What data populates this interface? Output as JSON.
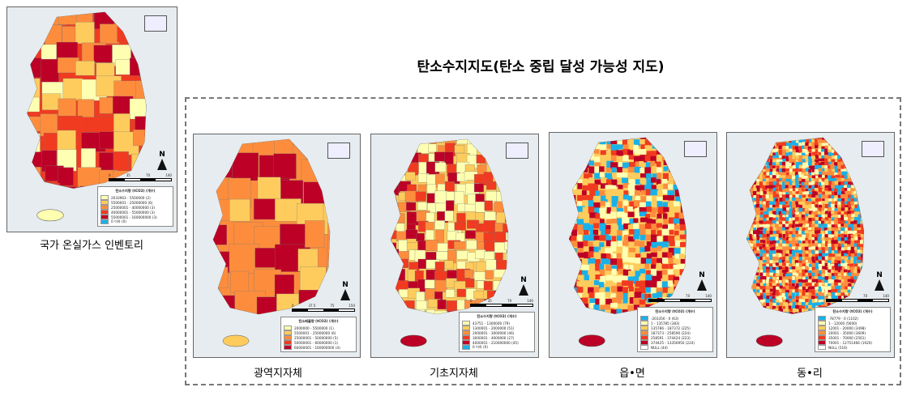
{
  "title": "탄소수지지도(탄소 중립 달성 가능성 지도)",
  "colors": {
    "c1": "#ffffb2",
    "c2": "#fecc5c",
    "c3": "#fd8d3c",
    "c4": "#f03b20",
    "c5": "#bd0026",
    "neg": "#1ab0e8",
    "null": "#ffffff",
    "sea": "#e6ecef"
  },
  "maps": [
    {
      "id": "national",
      "caption": "국가 온실가스 인벤토리",
      "north": "N",
      "scale": [
        "0",
        "35",
        "70",
        "140"
      ],
      "legend_title": "탄소수지량 (tCO2) (개수)",
      "legend": [
        {
          "label": "2033963 - 5500000 (2)",
          "color": "#ffffb2"
        },
        {
          "label": "5500001 - 25000000 (6)",
          "color": "#fecc5c"
        },
        {
          "label": "25000001 - 40000000 (3)",
          "color": "#fd8d3c"
        },
        {
          "label": "40000001 - 55000000 (3)",
          "color": "#f03b20"
        },
        {
          "label": "55000001 - 160000000 (3)",
          "color": "#bd0026"
        },
        {
          "label": "0 이하 (0)",
          "color": "#1ab0e8"
        }
      ]
    },
    {
      "id": "province",
      "caption": "광역지자체",
      "north": "N",
      "scale": [
        "0",
        "37.5",
        "75",
        "150"
      ],
      "legend_title": "탄소배출량 (tCO2) (개수)",
      "legend": [
        {
          "label": "2000000 - 5500000 (1)",
          "color": "#ffffb2"
        },
        {
          "label": "5500001 - 25000000 (6)",
          "color": "#fecc5c"
        },
        {
          "label": "25000001 - 50000000 (5)",
          "color": "#fd8d3c"
        },
        {
          "label": "50000001 - 60000000 (1)",
          "color": "#f03b20"
        },
        {
          "label": "60000001 - 160000000 (4)",
          "color": "#bd0026"
        }
      ]
    },
    {
      "id": "municipal",
      "caption": "기초지자체",
      "north": "N",
      "scale": [
        "0",
        "35",
        "70",
        "140"
      ],
      "legend_title": "탄소수지량 (tCO2) (개수)",
      "legend": [
        {
          "label": "43751 - 1300000 (79)",
          "color": "#ffffb2"
        },
        {
          "label": "1300001 - 2000000 (51)",
          "color": "#fecc5c"
        },
        {
          "label": "2000001 - 3000000 (46)",
          "color": "#fd8d3c"
        },
        {
          "label": "3000001 - 4000000 (27)",
          "color": "#f03b20"
        },
        {
          "label": "4000001 - 210000000 (45)",
          "color": "#bd0026"
        },
        {
          "label": "0 이하 (0)",
          "color": "#1ab0e8"
        }
      ]
    },
    {
      "id": "eup-myeon",
      "caption": "읍•면",
      "north": "N",
      "scale": [
        "0",
        "35",
        "70",
        "140"
      ],
      "legend_title": "탄소수지량 (tCO2) (개수)",
      "legend": [
        {
          "label": "-203356 - 0 (63)",
          "color": "#1ab0e8"
        },
        {
          "label": "1 - 135785 (383)",
          "color": "#ffffb2"
        },
        {
          "label": "135786 - 187372 (225)",
          "color": "#fecc5c"
        },
        {
          "label": "187373 - 258590 (224)",
          "color": "#fd8d3c"
        },
        {
          "label": "258591 - 374424 (223)",
          "color": "#f03b20"
        },
        {
          "label": "374425 - 13356950 (224)",
          "color": "#bd0026"
        },
        {
          "label": "NULL (44)",
          "color": "#ffffff"
        }
      ]
    },
    {
      "id": "dong-ri",
      "caption": "동•리",
      "north": "N",
      "scale": [
        "0",
        "35",
        "70",
        "140"
      ],
      "legend_title": "탄소수지량 (tCO2) (개수)",
      "legend": [
        {
          "label": "-78779 - 0 (1102)",
          "color": "#1ab0e8"
        },
        {
          "label": "1 - 12000 (5600)",
          "color": "#ffffb2"
        },
        {
          "label": "12001 - 20000 (3498)",
          "color": "#fecc5c"
        },
        {
          "label": "20001 - 35000 (3609)",
          "color": "#fd8d3c"
        },
        {
          "label": "35001 - 70000 (2561)",
          "color": "#f03b20"
        },
        {
          "label": "70001 - 12751466 (1920)",
          "color": "#bd0026"
        },
        {
          "label": "NULL (516)",
          "color": "#ffffff"
        }
      ]
    }
  ]
}
